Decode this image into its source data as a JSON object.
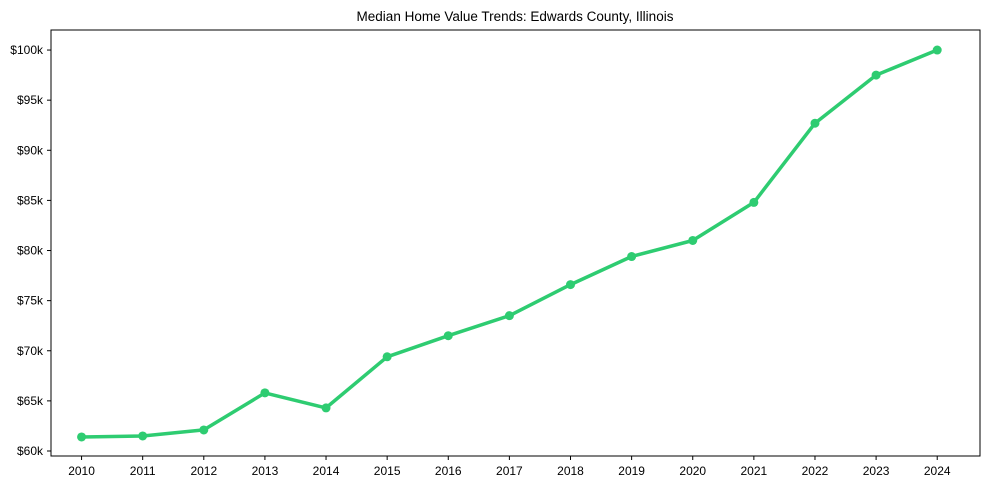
{
  "chart_data": {
    "type": "line",
    "title": "Median Home Value Trends: Edwards County, Illinois",
    "xlabel": "",
    "ylabel": "",
    "categories": [
      "2010",
      "2011",
      "2012",
      "2013",
      "2014",
      "2015",
      "2016",
      "2017",
      "2018",
      "2019",
      "2020",
      "2021",
      "2022",
      "2023",
      "2024"
    ],
    "series": [
      {
        "name": "Median Home Value",
        "color": "#2ecc71",
        "values": [
          61400,
          61500,
          62100,
          65800,
          64300,
          69400,
          71500,
          73500,
          76600,
          79400,
          81000,
          84800,
          92700,
          97500,
          100000
        ]
      }
    ],
    "y_ticks": [
      60000,
      65000,
      70000,
      75000,
      80000,
      85000,
      90000,
      95000,
      100000
    ],
    "y_tick_labels": [
      "$60k",
      "$65k",
      "$70k",
      "$75k",
      "$80k",
      "$85k",
      "$90k",
      "$95k",
      "$100k"
    ],
    "ylim": [
      59500,
      102000
    ],
    "xlim": [
      -0.5,
      14.7
    ],
    "grid": false,
    "legend": null,
    "markers": true
  }
}
